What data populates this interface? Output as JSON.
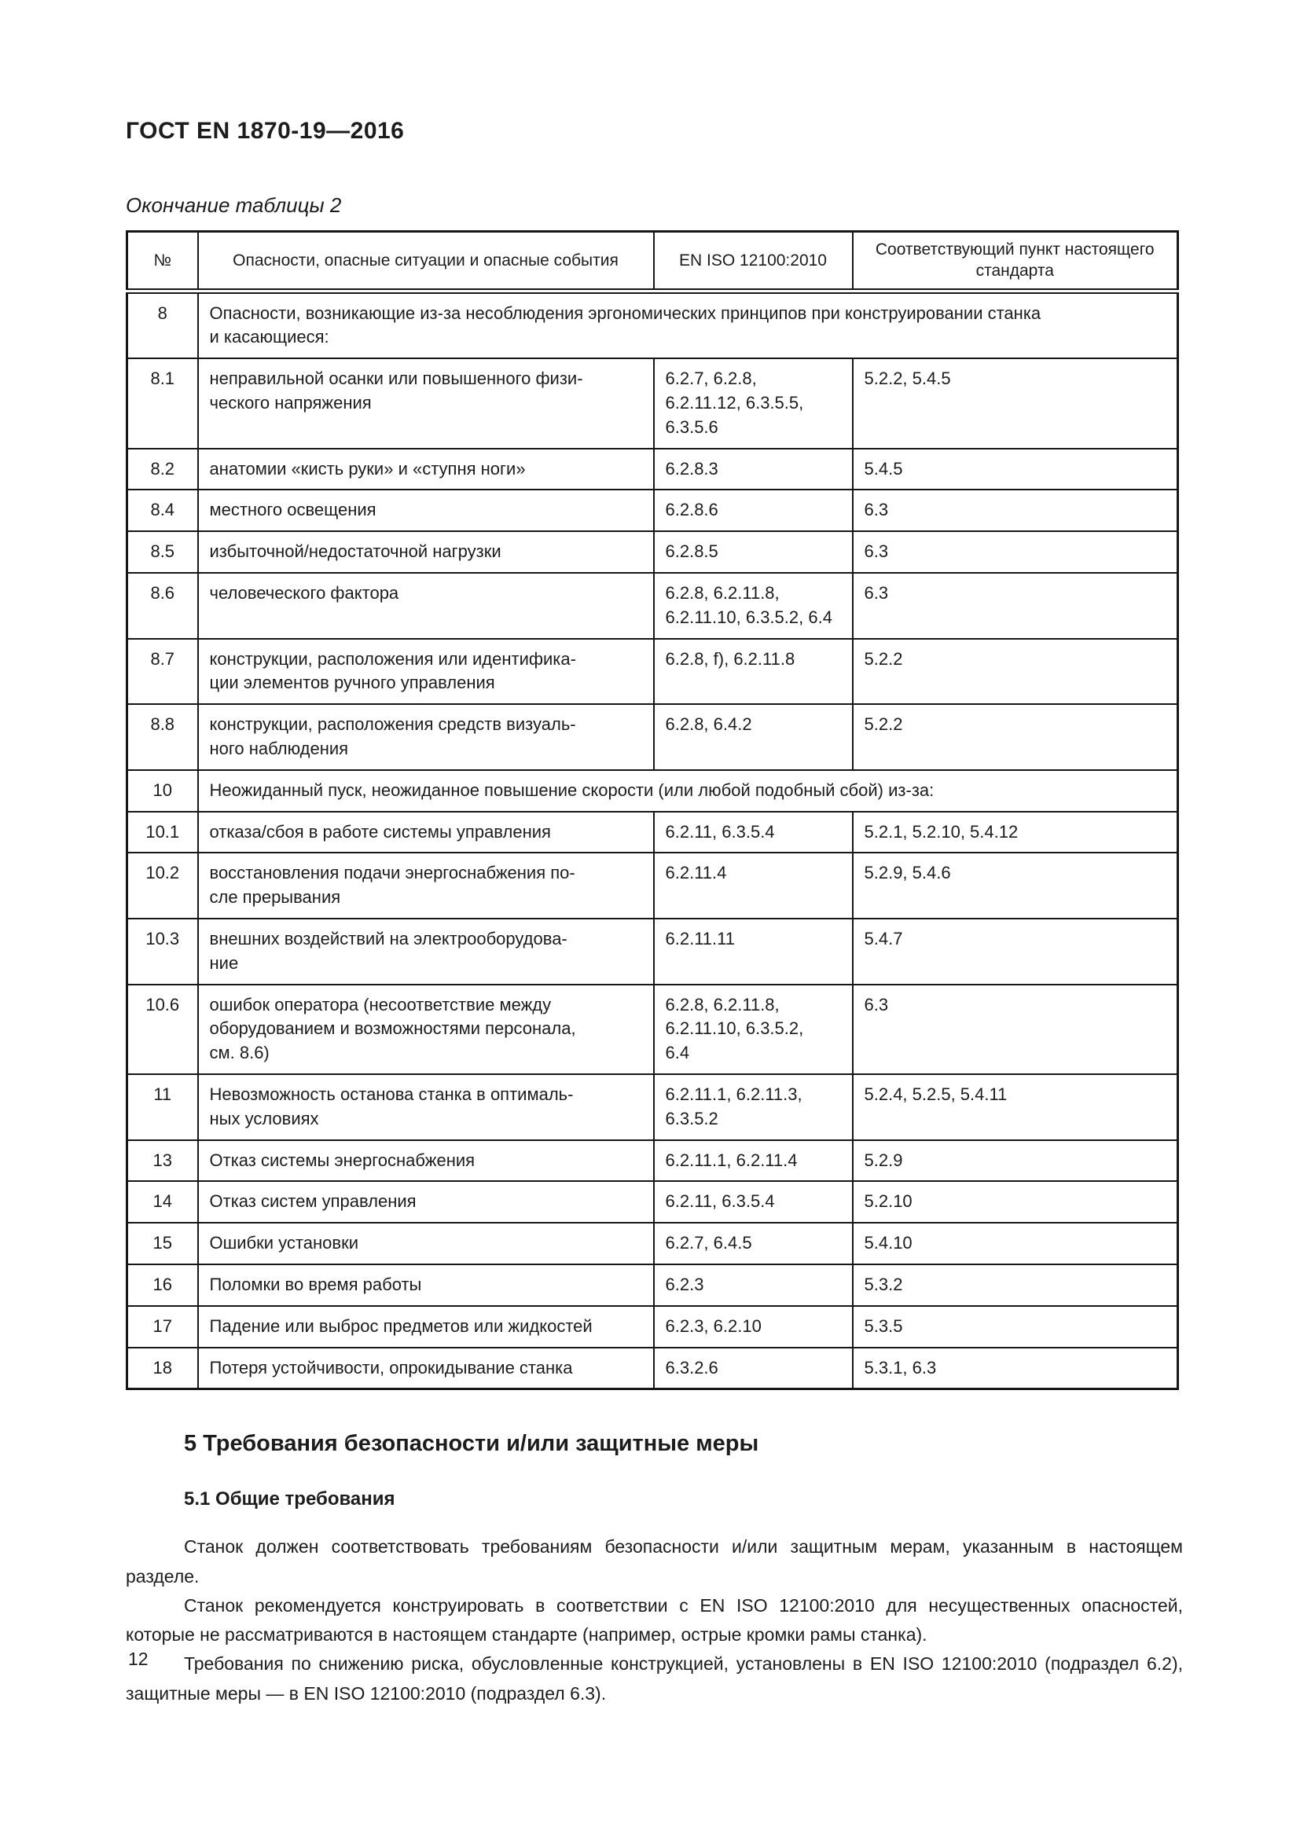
{
  "page": {
    "header_title": "ГОСТ EN 1870-19—2016",
    "table_caption": "Окончание таблицы 2",
    "page_number": "12"
  },
  "table": {
    "columns": {
      "num": "№",
      "hazard": "Опасности, опасные ситуации и опасные события",
      "iso": "EN ISO 12100:2010",
      "clause": "Соответствующий пункт настоящего стандарта"
    },
    "rows": [
      {
        "num": "8",
        "text": "Опасности, возникающие из-за несоблюдения эргономических принципов при конструировании станка\nи касающиеся:"
      },
      {
        "num": "8.1",
        "hazard": "неправильной осанки или повышенного физи-\nческого напряжения",
        "iso": "6.2.7, 6.2.8,\n6.2.11.12, 6.3.5.5,\n6.3.5.6",
        "clause": "5.2.2, 5.4.5"
      },
      {
        "num": "8.2",
        "hazard": "анатомии «кисть руки» и «ступня ноги»",
        "iso": "6.2.8.3",
        "clause": "5.4.5"
      },
      {
        "num": "8.4",
        "hazard": "местного освещения",
        "iso": "6.2.8.6",
        "clause": "6.3"
      },
      {
        "num": "8.5",
        "hazard": "избыточной/недостаточной нагрузки",
        "iso": "6.2.8.5",
        "clause": "6.3"
      },
      {
        "num": "8.6",
        "hazard": "человеческого фактора",
        "iso": "6.2.8, 6.2.11.8,\n6.2.11.10, 6.3.5.2, 6.4",
        "clause": "6.3"
      },
      {
        "num": "8.7",
        "hazard": "конструкции, расположения или идентифика-\nции элементов ручного управления",
        "iso": "6.2.8, f), 6.2.11.8",
        "clause": "5.2.2"
      },
      {
        "num": "8.8",
        "hazard": "конструкции, расположения средств визуаль-\nного наблюдения",
        "iso": "6.2.8, 6.4.2",
        "clause": "5.2.2"
      },
      {
        "num": "10",
        "text": "Неожиданный пуск, неожиданное повышение скорости (или любой подобный сбой) из-за:"
      },
      {
        "num": "10.1",
        "hazard": "отказа/сбоя в работе системы управления",
        "iso": "6.2.11, 6.3.5.4",
        "clause": "5.2.1, 5.2.10, 5.4.12"
      },
      {
        "num": "10.2",
        "hazard": "восстановления подачи энергоснабжения по-\nсле прерывания",
        "iso": "6.2.11.4",
        "clause": "5.2.9, 5.4.6"
      },
      {
        "num": "10.3",
        "hazard": "внешних воздействий на электрооборудова-\nние",
        "iso": "6.2.11.11",
        "clause": "5.4.7"
      },
      {
        "num": "10.6",
        "hazard": "ошибок оператора (несоответствие между\nоборудованием и возможностями персонала,\nсм. 8.6)",
        "iso": "6.2.8, 6.2.11.8,\n6.2.11.10, 6.3.5.2,\n6.4",
        "clause": "6.3"
      },
      {
        "num": "11",
        "hazard": "Невозможность останова станка в оптималь-\nных условиях",
        "iso": "6.2.11.1, 6.2.11.3,\n6.3.5.2",
        "clause": "5.2.4, 5.2.5, 5.4.11"
      },
      {
        "num": "13",
        "hazard": "Отказ системы энергоснабжения",
        "iso": "6.2.11.1, 6.2.11.4",
        "clause": "5.2.9"
      },
      {
        "num": "14",
        "hazard": "Отказ систем управления",
        "iso": "6.2.11, 6.3.5.4",
        "clause": "5.2.10"
      },
      {
        "num": "15",
        "hazard": "Ошибки установки",
        "iso": "6.2.7, 6.4.5",
        "clause": "5.4.10"
      },
      {
        "num": "16",
        "hazard": "Поломки во время работы",
        "iso": "6.2.3",
        "clause": "5.3.2"
      },
      {
        "num": "17",
        "hazard": "Падение или выброс предметов или жидкостей",
        "iso": "6.2.3, 6.2.10",
        "clause": "5.3.5"
      },
      {
        "num": "18",
        "hazard": "Потеря устойчивости, опрокидывание станка",
        "iso": "6.3.2.6",
        "clause": "5.3.1, 6.3"
      }
    ]
  },
  "section": {
    "heading": "5  Требования безопасности и/или защитные меры",
    "subheading": "5.1 Общие требования",
    "paragraphs": [
      "Станок должен соответствовать требованиям безопасности и/или защитным мерам, указанным в настоящем разделе.",
      "Станок рекомендуется конструировать в соответствии с EN ISO 12100:2010 для несущественных опасностей, которые не рассматриваются в настоящем стандарте (например, острые кромки рамы станка).",
      "Требования по снижению риска, обусловленные конструкцией, установлены в EN ISO 12100:2010 (подраздел 6.2), защитные меры — в EN ISO 12100:2010 (подраздел 6.3)."
    ]
  }
}
